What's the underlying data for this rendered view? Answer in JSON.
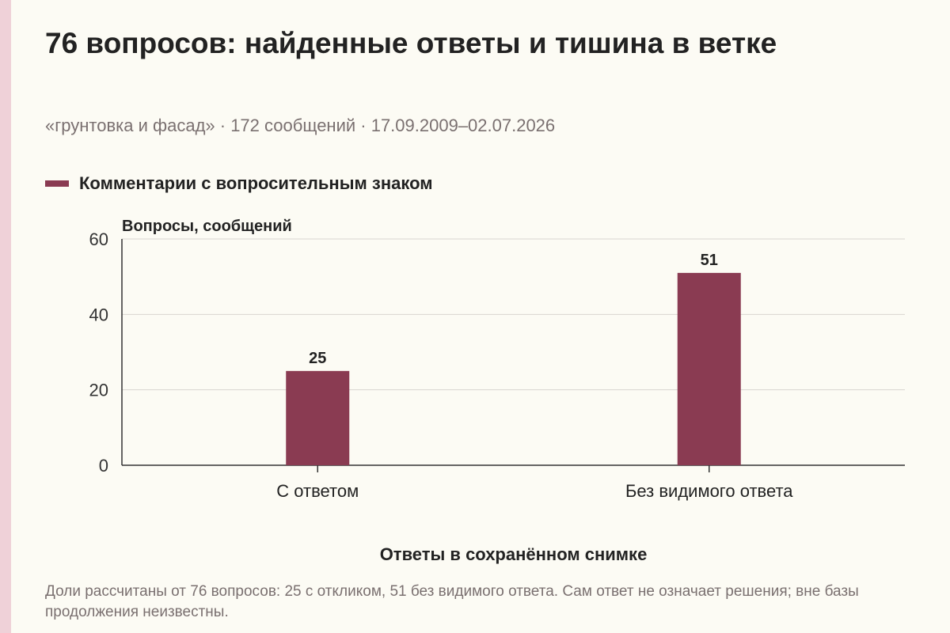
{
  "title": "76 вопросов: найденные ответы и тишина в ветке",
  "subtitle": "«грунтовка и фасад» · 172 сообщений · 17.09.2009–02.07.2026",
  "colors": {
    "bar": "#8a3b52",
    "background": "#fcfbf4",
    "edge": "#efd1d8"
  },
  "chart_data": {
    "type": "bar",
    "categories": [
      "С ответом",
      "Без видимого ответа"
    ],
    "series": [
      {
        "name": "Комментарии с вопросительным знаком",
        "values": [
          25,
          51
        ]
      }
    ],
    "ylabel": "Вопросы, сообщений",
    "xlabel": "Ответы в сохранённом снимке",
    "ylim": [
      0,
      60
    ],
    "yticks": [
      0,
      20,
      40,
      60
    ],
    "grid": true,
    "legend": "top-left",
    "data_labels": true
  },
  "caption": "Доли рассчитаны от 76 вопросов: 25 с откликом, 51 без видимого ответа. Сам ответ не означает решения; вне базы продолжения неизвестны."
}
